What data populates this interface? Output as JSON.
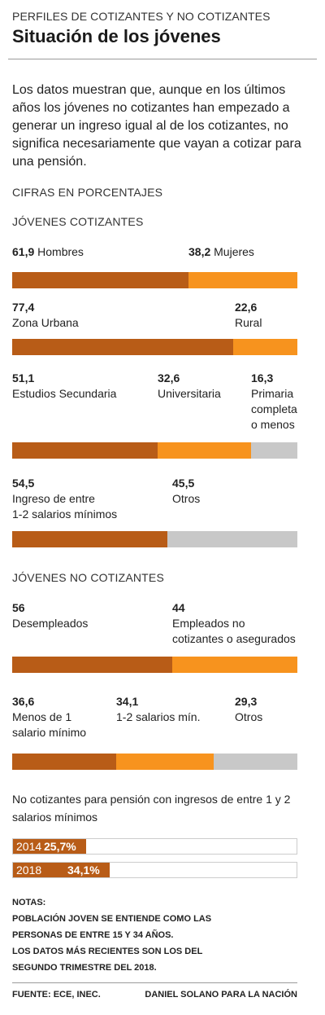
{
  "header": {
    "kicker": "PERFILES DE COTIZANTES Y NO COTIZANTES",
    "title": "Situación de los jóvenes",
    "intro": "Los datos muestran que, aunque en los últimos años los jóvenes no cotizantes han empezado a generar un ingreso igual al de los cotizantes, no significa necesariamente que vayan a cotizar para una pensión.",
    "units": "CIFRAS EN PORCENTAJES"
  },
  "colors": {
    "dark": "#b85c17",
    "orange": "#f7931e",
    "gray": "#c8c8c8"
  },
  "chart_data": [
    {
      "type": "bar",
      "section": "JÓVENES COTIZANTES",
      "categories": [
        "Hombres",
        "Mujeres"
      ],
      "values": [
        61.9,
        38.2
      ]
    },
    {
      "type": "bar",
      "section": "JÓVENES COTIZANTES",
      "categories": [
        "Zona Urbana",
        "Rural"
      ],
      "values": [
        77.4,
        22.6
      ]
    },
    {
      "type": "bar",
      "section": "JÓVENES COTIZANTES",
      "categories": [
        "Estudios Secundaria",
        "Universitaria",
        "Primaria completa o menos"
      ],
      "values": [
        51.1,
        32.6,
        16.3
      ]
    },
    {
      "type": "bar",
      "section": "JÓVENES COTIZANTES",
      "categories": [
        "Ingreso de entre 1-2 salarios mínimos",
        "Otros"
      ],
      "values": [
        54.5,
        45.5
      ]
    },
    {
      "type": "bar",
      "section": "JÓVENES NO COTIZANTES",
      "categories": [
        "Desempleados",
        "Empleados no cotizantes o asegurados"
      ],
      "values": [
        56,
        44
      ]
    },
    {
      "type": "bar",
      "section": "JÓVENES NO COTIZANTES",
      "categories": [
        "Menos de 1 salario mínimo",
        "1-2 salarios mín.",
        "Otros"
      ],
      "values": [
        36.6,
        34.1,
        29.3
      ]
    },
    {
      "type": "bar",
      "title": "No cotizantes para pensión con ingresos de entre 1 y 2 salarios mínimos",
      "categories": [
        "2014",
        "2018"
      ],
      "values": [
        25.7,
        34.1
      ]
    }
  ],
  "sections": {
    "cotizantes": "JÓVENES COTIZANTES",
    "no_cotizantes": "JÓVENES NO COTIZANTES"
  },
  "labels": {
    "c1": {
      "v1": "61,9",
      "l1": "Hombres",
      "v2": "38,2",
      "l2": "Mujeres"
    },
    "c2": {
      "v1": "77,4",
      "l1": "Zona Urbana",
      "v2": "22,6",
      "l2": "Rural"
    },
    "c3": {
      "v1": "51,1",
      "l1": "Estudios Secundaria",
      "v2": "32,6",
      "l2": "Universitaria",
      "v3": "16,3",
      "l3a": "Primaria",
      "l3b": "completa",
      "l3c": "o menos"
    },
    "c4": {
      "v1": "54,5",
      "l1a": "Ingreso de entre",
      "l1b": "1-2 salarios mínimos",
      "v2": "45,5",
      "l2": "Otros"
    },
    "n1": {
      "v1": "56",
      "l1": "Desempleados",
      "v2": "44",
      "l2a": "Empleados no",
      "l2b": "cotizantes o asegurados"
    },
    "n2": {
      "v1": "36,6",
      "l1a": "Menos de 1",
      "l1b": "salario mínimo",
      "v2": "34,1",
      "l2": "1-2 salarios mín.",
      "v3": "29,3",
      "l3": "Otros"
    }
  },
  "timeline": {
    "title_a": "No cotizantes para pensión con ingresos de entre 1 y 2",
    "title_b": "salarios mínimos",
    "rows": [
      {
        "year": "2014",
        "pct": "25,7%"
      },
      {
        "year": "2018",
        "pct": "34,1%"
      }
    ]
  },
  "notes": {
    "heading": "NOTAS:",
    "line1": "POBLACIÓN JOVEN SE ENTIENDE COMO LAS",
    "line2": "PERSONAS DE ENTRE 15 Y 34 AÑOS.",
    "line3": "LOS DATOS MÁS RECIENTES SON LOS DEL",
    "line4": "SEGUNDO TRIMESTRE DEL 2018."
  },
  "footer": {
    "source": "FUENTE: ECE, INEC.",
    "credit": "DANIEL SOLANO PARA LA NACIÓN"
  }
}
